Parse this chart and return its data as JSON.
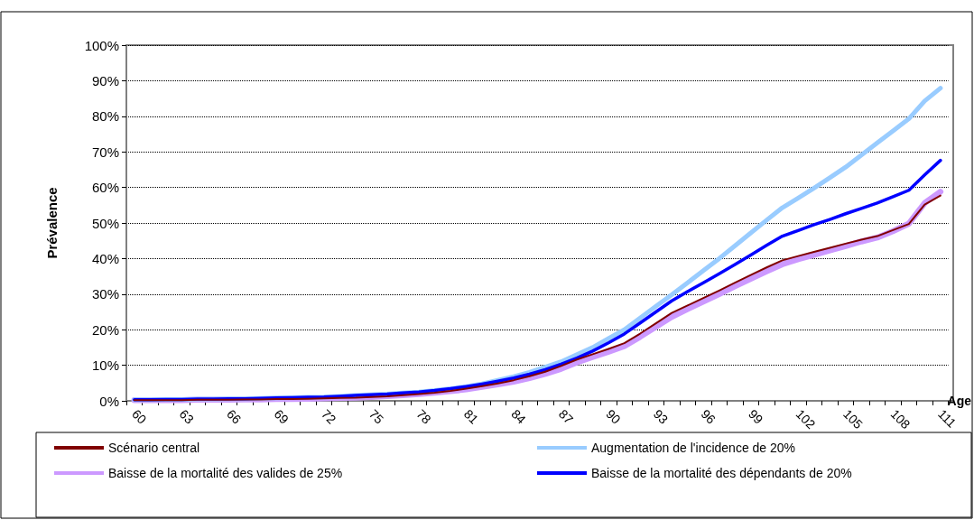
{
  "chart_data": {
    "type": "line",
    "xlabel": "Age",
    "ylabel": "Prévalence",
    "categories": [
      "60",
      null,
      null,
      "63",
      null,
      null,
      "66",
      null,
      null,
      "69",
      null,
      null,
      "72",
      null,
      null,
      "75",
      null,
      null,
      "78",
      null,
      null,
      "81",
      null,
      null,
      "84",
      null,
      null,
      "87",
      null,
      null,
      "90",
      null,
      null,
      "93",
      null,
      null,
      "96",
      null,
      null,
      "99",
      null,
      null,
      "102",
      null,
      null,
      "105",
      null,
      null,
      "108",
      null,
      null,
      "111"
    ],
    "series": [
      {
        "name": "Scénario central",
        "color": "#800000",
        "values": [
          0.2,
          0.2,
          0.2,
          0.2,
          0.3,
          0.3,
          0.3,
          0.4,
          0.4,
          0.5,
          0.5,
          0.6,
          0.7,
          0.8,
          0.9,
          1.1,
          1.3,
          1.6,
          1.9,
          2.3,
          2.8,
          3.4,
          4.1,
          4.9,
          5.8,
          6.9,
          8.2,
          9.8,
          11.6,
          13.1,
          14.6,
          16.2,
          18.9,
          21.8,
          24.7,
          26.8,
          28.9,
          31.0,
          33.2,
          35.4,
          37.5,
          39.5,
          40.7,
          41.9,
          43.0,
          44.2,
          45.3,
          46.3,
          48.0,
          49.7,
          55.2,
          57.7
        ]
      },
      {
        "name": "Augmentation de l'incidence de 20%",
        "color": "#99ccff",
        "values": [
          0.3,
          0.3,
          0.4,
          0.4,
          0.5,
          0.5,
          0.6,
          0.6,
          0.7,
          0.8,
          0.9,
          1.0,
          1.1,
          1.3,
          1.5,
          1.7,
          1.9,
          2.2,
          2.5,
          2.9,
          3.4,
          4.0,
          4.8,
          5.8,
          6.8,
          8.0,
          9.5,
          11.0,
          13.0,
          15.0,
          17.5,
          20.0,
          23.3,
          26.6,
          29.8,
          33.2,
          36.6,
          40.0,
          43.6,
          47.2,
          50.8,
          54.3,
          57.0,
          59.8,
          62.7,
          65.7,
          69.1,
          72.5,
          75.9,
          79.3,
          84.3,
          87.9
        ]
      },
      {
        "name": "Baisse de la mortalité des valides de 25%",
        "color": "#cc99ff",
        "values": [
          0.2,
          0.2,
          0.2,
          0.2,
          0.3,
          0.3,
          0.3,
          0.4,
          0.4,
          0.5,
          0.5,
          0.6,
          0.7,
          0.8,
          0.9,
          1.1,
          1.3,
          1.6,
          1.9,
          2.3,
          2.7,
          3.2,
          3.9,
          4.6,
          5.4,
          6.4,
          7.6,
          9.0,
          10.8,
          12.3,
          13.8,
          15.4,
          18.0,
          20.8,
          23.6,
          25.8,
          27.9,
          30.0,
          32.2,
          34.3,
          36.4,
          38.4,
          39.8,
          41.0,
          42.3,
          43.5,
          44.8,
          45.9,
          47.7,
          49.8,
          55.6,
          58.8
        ]
      },
      {
        "name": "Baisse de la mortalité des dépendants de 20%",
        "color": "#0000ff",
        "values": [
          0.3,
          0.3,
          0.4,
          0.4,
          0.5,
          0.5,
          0.6,
          0.6,
          0.7,
          0.8,
          0.9,
          1.0,
          1.1,
          1.3,
          1.5,
          1.7,
          1.9,
          2.2,
          2.5,
          2.9,
          3.4,
          4.0,
          4.7,
          5.5,
          6.4,
          7.5,
          8.8,
          10.3,
          12.0,
          14.0,
          16.3,
          18.8,
          21.9,
          25.0,
          28.1,
          30.7,
          33.2,
          35.7,
          38.3,
          41.0,
          43.7,
          46.3,
          47.9,
          49.5,
          51.0,
          52.6,
          54.1,
          55.6,
          57.4,
          59.2,
          63.5,
          67.6
        ]
      }
    ],
    "ylim": [
      0,
      100
    ],
    "yticks": [
      {
        "value": 0,
        "label": "0%"
      },
      {
        "value": 10,
        "label": "10%"
      },
      {
        "value": 20,
        "label": "20%"
      },
      {
        "value": 30,
        "label": "30%"
      },
      {
        "value": 40,
        "label": "40%"
      },
      {
        "value": 50,
        "label": "50%"
      },
      {
        "value": 60,
        "label": "60%"
      },
      {
        "value": 70,
        "label": "70%"
      },
      {
        "value": 80,
        "label": "80%"
      },
      {
        "value": 90,
        "label": "90%"
      },
      {
        "value": 100,
        "label": "100%"
      }
    ],
    "grid": "y",
    "legend": "bottom",
    "marker": "none",
    "line_style": "solid"
  }
}
